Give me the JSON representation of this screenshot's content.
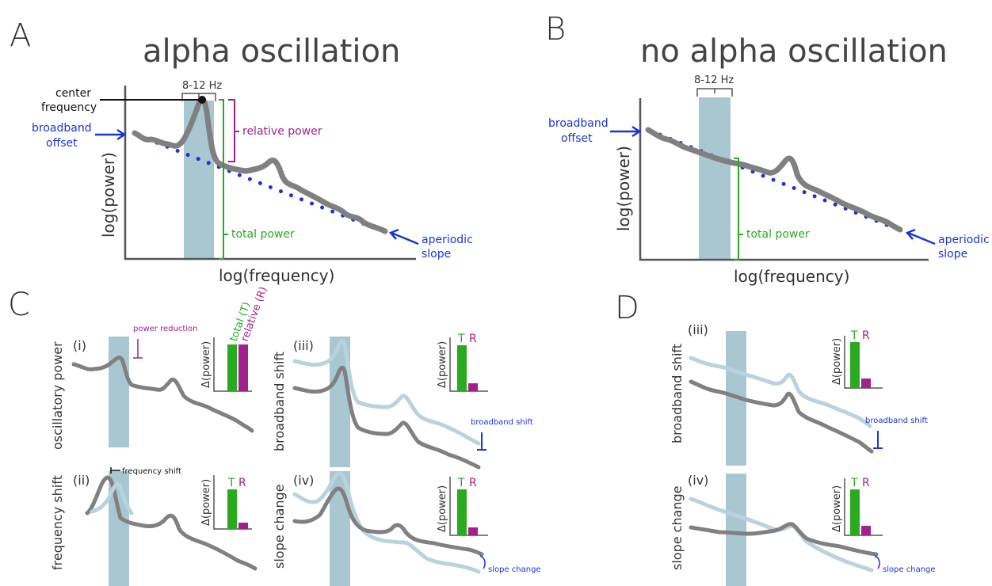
{
  "colors": {
    "band": "#a9c7d0",
    "spectrum": "#808080",
    "spectrum_light": "#b8d2e0",
    "aperiodic": "#1a35d4",
    "relative": "#a0208f",
    "total": "#2aab1f",
    "text": "#333333"
  },
  "panel_a": {
    "letter": "A",
    "title": "alpha oscillation",
    "band_label": "8-12 Hz",
    "center_frequency": "center frequency",
    "broadband_offset": "broadband offset",
    "relative_power": "relative power",
    "total_power": "total power",
    "aperiodic_slope": "aperiodic slope",
    "ylabel": "log(power)",
    "xlabel": "log(frequency)"
  },
  "panel_b": {
    "letter": "B",
    "title": "no alpha oscillation",
    "band_label": "8-12 Hz",
    "broadband_offset": "broadband offset",
    "total_power": "total power",
    "aperiodic_slope": "aperiodic slope",
    "ylabel": "log(power)",
    "xlabel": "log(frequency)"
  },
  "panel_c": {
    "letter": "C",
    "i": {
      "roman": "(i)",
      "side": "oscillatory power",
      "annotation": "power reduction",
      "bar_total": "total (T)",
      "bar_relative": "relative (R)",
      "ylabel": "Δ(power)"
    },
    "ii": {
      "roman": "(ii)",
      "side": "frequency shift",
      "annotation": "frequency shift",
      "bar_t": "T",
      "bar_r": "R",
      "ylabel": "Δ(power)"
    },
    "iii": {
      "roman": "(iii)",
      "side": "broadband shift",
      "annotation": "broadband shift",
      "bar_t": "T",
      "bar_r": "R",
      "ylabel": "Δ(power)"
    },
    "iv": {
      "roman": "(iv)",
      "side": "slope change",
      "annotation": "slope change",
      "bar_t": "T",
      "bar_r": "R",
      "ylabel": "Δ(power)"
    }
  },
  "panel_d": {
    "letter": "D",
    "iii": {
      "roman": "(iii)",
      "side": "broadband shift",
      "annotation": "broadband shift",
      "bar_t": "T",
      "bar_r": "R",
      "ylabel": "Δ(power)"
    },
    "iv": {
      "roman": "(iv)",
      "side": "slope change",
      "annotation": "slope change",
      "bar_t": "T",
      "bar_r": "R",
      "ylabel": "Δ(power)"
    }
  }
}
